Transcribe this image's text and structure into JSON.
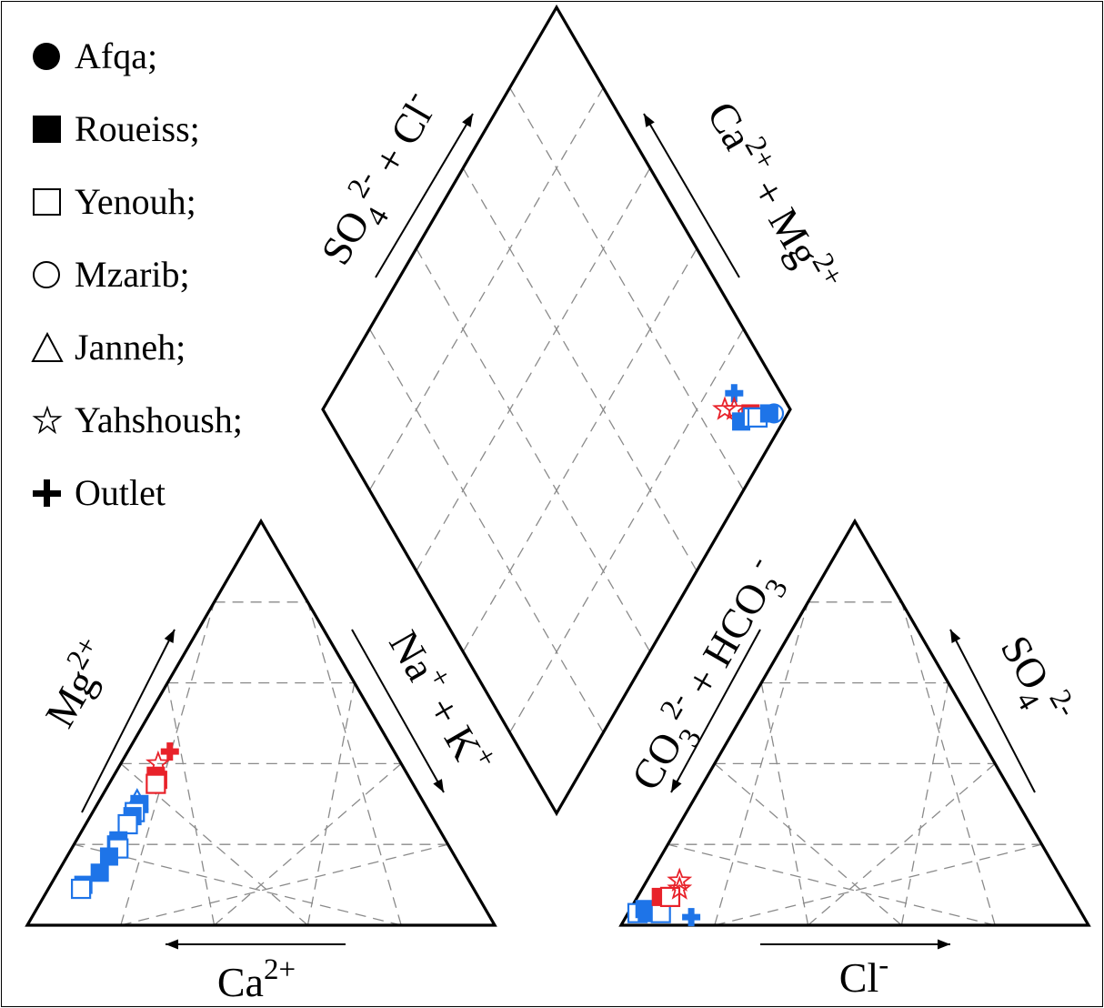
{
  "legend": [
    {
      "symbol": "filled-circle",
      "label": "Afqa;"
    },
    {
      "symbol": "filled-square",
      "label": "Roueiss;"
    },
    {
      "symbol": "open-square",
      "label": "Yenouh;"
    },
    {
      "symbol": "open-circle",
      "label": "Mzarib;"
    },
    {
      "symbol": "open-triangle",
      "label": "Janneh;"
    },
    {
      "symbol": "open-star",
      "label": "Yahshoush;"
    },
    {
      "symbol": "plus",
      "label": "Outlet"
    }
  ],
  "axis_labels": {
    "cation_left": {
      "base": "Mg",
      "sup": "2+"
    },
    "cation_bottom": {
      "base": "Ca",
      "sup": "2+"
    },
    "cation_right": {
      "base": "Na",
      "sup": "+",
      "mid": " + K",
      "sup2": "+"
    },
    "anion_left": {
      "base": "CO",
      "sub": "3",
      "sup": "2-",
      "mid": " + HCO",
      "sub2": "3",
      "sup2": "-"
    },
    "anion_bottom": {
      "base": "Cl",
      "sup": "-"
    },
    "anion_right": {
      "base": "SO",
      "sub": "4",
      "sup": "2-"
    },
    "diamond_left": {
      "base": "SO",
      "sub": "4",
      "sup": "2-",
      "mid": " + Cl",
      "sup2": "-"
    },
    "diamond_right": {
      "base": "Ca",
      "sup": "2+",
      "mid": " + Mg",
      "sup2": "2+"
    }
  },
  "chart_data": {
    "type": "scatter",
    "subtype": "piper",
    "grid": true,
    "grid_interval_percent": 20,
    "colors": {
      "red": "#e8222a",
      "blue": "#1e74e8"
    },
    "cations": [
      {
        "symbol": "filled-square",
        "color": "red",
        "ca": 54,
        "mg": 37
      },
      {
        "symbol": "filled-square",
        "color": "red",
        "ca": 54,
        "mg": 36
      },
      {
        "symbol": "open-square",
        "color": "red",
        "ca": 55,
        "mg": 35
      },
      {
        "symbol": "open-star",
        "color": "red",
        "ca": 52,
        "mg": 40
      },
      {
        "symbol": "plus",
        "color": "red",
        "ca": 48,
        "mg": 43
      },
      {
        "symbol": "filled-square",
        "color": "blue",
        "ca": 61,
        "mg": 30
      },
      {
        "symbol": "open-triangle",
        "color": "blue",
        "ca": 61,
        "mg": 31
      },
      {
        "symbol": "open-square",
        "color": "blue",
        "ca": 63,
        "mg": 28
      },
      {
        "symbol": "filled-square",
        "color": "blue",
        "ca": 64,
        "mg": 27
      },
      {
        "symbol": "open-square",
        "color": "blue",
        "ca": 66,
        "mg": 25
      },
      {
        "symbol": "filled-square",
        "color": "blue",
        "ca": 70,
        "mg": 21
      },
      {
        "symbol": "filled-square",
        "color": "blue",
        "ca": 71,
        "mg": 20
      },
      {
        "symbol": "open-square",
        "color": "blue",
        "ca": 71,
        "mg": 19
      },
      {
        "symbol": "filled-square",
        "color": "blue",
        "ca": 74,
        "mg": 17
      },
      {
        "symbol": "filled-square",
        "color": "blue",
        "ca": 78,
        "mg": 13
      },
      {
        "symbol": "filled-square",
        "color": "blue",
        "ca": 83,
        "mg": 10
      },
      {
        "symbol": "open-square",
        "color": "blue",
        "ca": 84,
        "mg": 9
      }
    ],
    "anions": [
      {
        "symbol": "open-square",
        "color": "blue",
        "cl": 2,
        "so4": 3
      },
      {
        "symbol": "filled-square",
        "color": "blue",
        "cl": 3,
        "so4": 4
      },
      {
        "symbol": "filled-square",
        "color": "blue",
        "cl": 4,
        "so4": 3
      },
      {
        "symbol": "open-square",
        "color": "blue",
        "cl": 7,
        "so4": 3
      },
      {
        "symbol": "filled-square",
        "color": "red",
        "cl": 5,
        "so4": 7
      },
      {
        "symbol": "open-square",
        "color": "red",
        "cl": 7,
        "so4": 7
      },
      {
        "symbol": "open-star",
        "color": "red",
        "cl": 7,
        "so4": 11
      },
      {
        "symbol": "open-star",
        "color": "red",
        "cl": 8,
        "so4": 9
      },
      {
        "symbol": "plus",
        "color": "blue",
        "cl": 14,
        "so4": 2
      }
    ],
    "diamond": [
      {
        "symbol": "plus",
        "color": "blue",
        "so4_cl": 14,
        "ca_mg": 90
      },
      {
        "symbol": "open-star",
        "color": "red",
        "so4_cl": 14,
        "ca_mg": 86
      },
      {
        "symbol": "open-star",
        "color": "red",
        "so4_cl": 12,
        "ca_mg": 88
      },
      {
        "symbol": "filled-square",
        "color": "red",
        "so4_cl": 8,
        "ca_mg": 91
      },
      {
        "symbol": "filled-square",
        "color": "blue",
        "so4_cl": 9,
        "ca_mg": 88
      },
      {
        "symbol": "open-square",
        "color": "blue",
        "so4_cl": 7,
        "ca_mg": 91
      },
      {
        "symbol": "open-square",
        "color": "blue",
        "so4_cl": 6,
        "ca_mg": 92
      },
      {
        "symbol": "filled-square",
        "color": "blue",
        "so4_cl": 4,
        "ca_mg": 95
      },
      {
        "symbol": "open-circle",
        "color": "blue",
        "so4_cl": 3,
        "ca_mg": 96
      }
    ]
  }
}
